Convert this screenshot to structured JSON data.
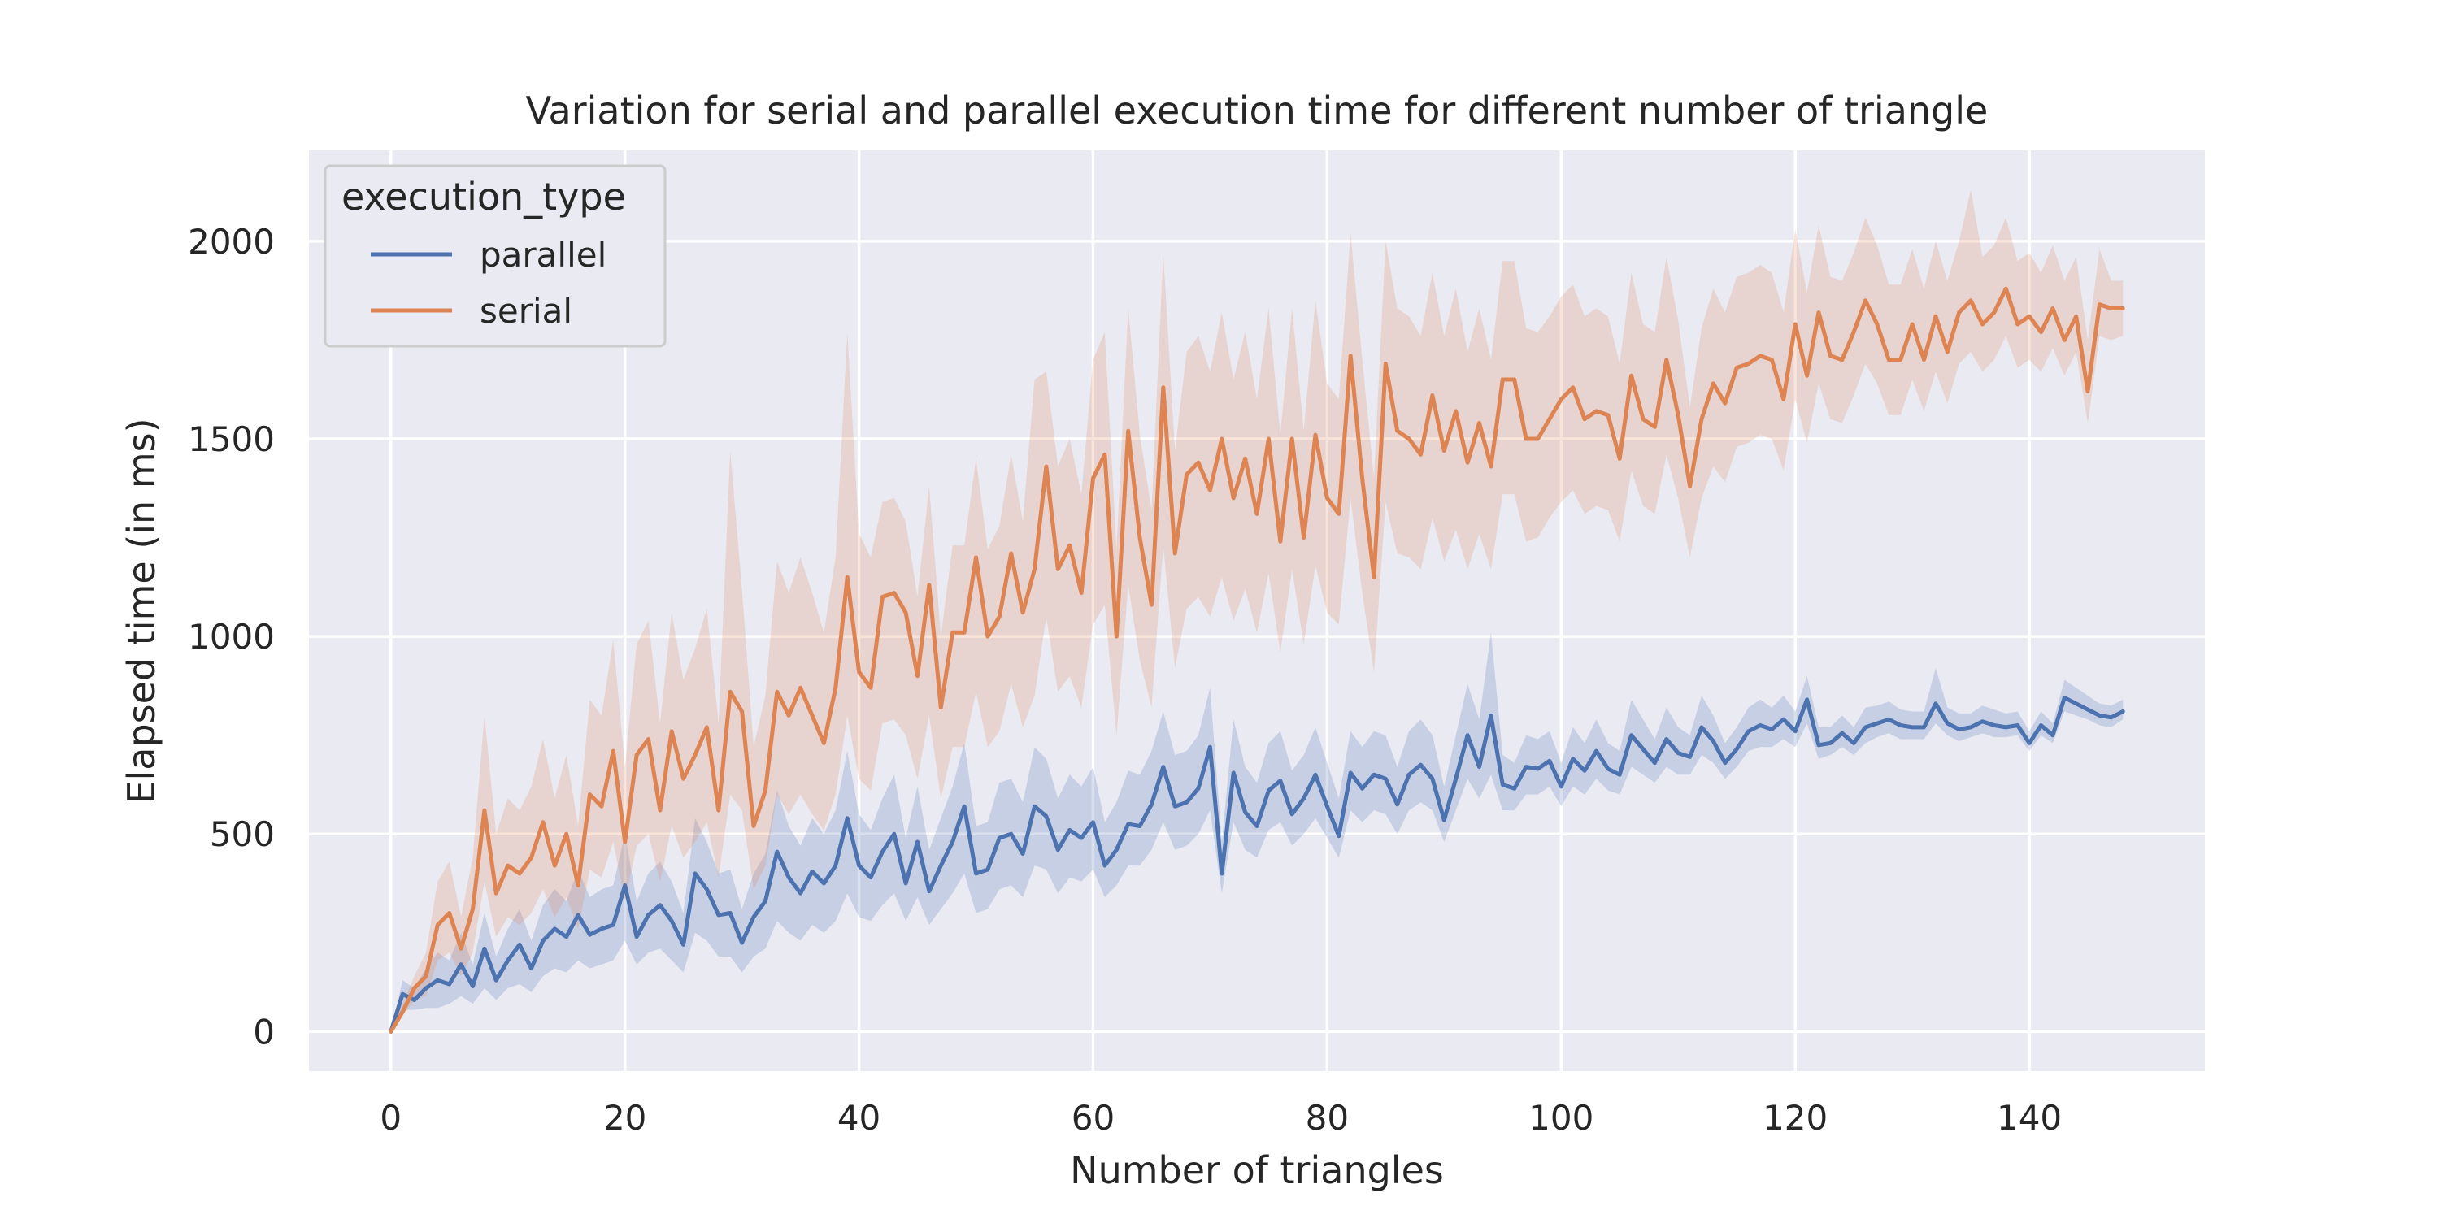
{
  "chart_data": {
    "type": "line",
    "title": "Variation for serial and parallel execution time for different number of triangle",
    "xlabel": "Number of triangles",
    "ylabel": "Elapsed time (in ms)",
    "xlim": [
      -7,
      155
    ],
    "ylim": [
      -100,
      2230
    ],
    "x_ticks": [
      0,
      20,
      40,
      60,
      80,
      100,
      120,
      140
    ],
    "y_ticks": [
      0,
      500,
      1000,
      1500,
      2000
    ],
    "grid": true,
    "legend": {
      "title": "execution_type",
      "placement": "top-left"
    },
    "series": [
      {
        "name": "parallel",
        "color": "#4c72b0",
        "x": [
          0,
          1,
          2,
          3,
          4,
          5,
          6,
          7,
          8,
          9,
          10,
          11,
          12,
          13,
          14,
          15,
          16,
          17,
          18,
          19,
          20,
          21,
          22,
          23,
          24,
          25,
          26,
          27,
          28,
          29,
          30,
          31,
          32,
          33,
          34,
          35,
          36,
          37,
          38,
          39,
          40,
          41,
          42,
          43,
          44,
          45,
          46,
          47,
          48,
          49,
          50,
          51,
          52,
          53,
          54,
          55,
          56,
          57,
          58,
          59,
          60,
          61,
          62,
          63,
          64,
          65,
          66,
          67,
          68,
          69,
          70,
          71,
          72,
          73,
          74,
          75,
          76,
          77,
          78,
          79,
          80,
          81,
          82,
          83,
          84,
          85,
          86,
          87,
          88,
          89,
          90,
          91,
          92,
          93,
          94,
          95,
          96,
          97,
          98,
          99,
          100,
          101,
          102,
          103,
          104,
          105,
          106,
          107,
          108,
          109,
          110,
          111,
          112,
          113,
          114,
          115,
          116,
          117,
          118,
          119,
          120,
          121,
          122,
          123,
          124,
          125,
          126,
          127,
          128,
          129,
          130,
          131,
          132,
          133,
          134,
          135,
          136,
          137,
          138,
          139,
          140,
          141,
          142,
          143,
          144,
          145,
          146,
          147,
          148
        ],
        "values": [
          0,
          95,
          80,
          110,
          130,
          120,
          170,
          115,
          210,
          130,
          180,
          220,
          160,
          230,
          260,
          240,
          295,
          245,
          260,
          270,
          370,
          240,
          295,
          320,
          280,
          220,
          400,
          360,
          295,
          300,
          225,
          290,
          330,
          455,
          390,
          350,
          405,
          375,
          420,
          540,
          420,
          390,
          455,
          500,
          375,
          480,
          355,
          420,
          480,
          570,
          400,
          410,
          490,
          500,
          450,
          570,
          545,
          460,
          510,
          490,
          530,
          420,
          460,
          525,
          520,
          575,
          670,
          570,
          580,
          615,
          720,
          400,
          655,
          555,
          520,
          610,
          635,
          550,
          590,
          650,
          570,
          495,
          655,
          615,
          650,
          640,
          575,
          650,
          675,
          640,
          535,
          640,
          750,
          670,
          800,
          625,
          615,
          670,
          665,
          685,
          620,
          690,
          660,
          710,
          665,
          650,
          750,
          715,
          680,
          740,
          705,
          695,
          770,
          735,
          680,
          715,
          760,
          775,
          765,
          790,
          760,
          840,
          725,
          730,
          755,
          730,
          770,
          780,
          790,
          775,
          770,
          770,
          830,
          780,
          765,
          770,
          785,
          775,
          770,
          775,
          730,
          775,
          750,
          845,
          830,
          815,
          800,
          795,
          810
        ],
        "ci_lower": [
          0,
          55,
          55,
          60,
          60,
          70,
          90,
          70,
          110,
          80,
          110,
          120,
          100,
          140,
          160,
          150,
          180,
          160,
          170,
          180,
          230,
          170,
          200,
          210,
          180,
          150,
          250,
          230,
          190,
          190,
          150,
          190,
          210,
          280,
          250,
          230,
          270,
          250,
          280,
          350,
          290,
          280,
          320,
          350,
          280,
          340,
          270,
          310,
          350,
          400,
          300,
          310,
          360,
          370,
          340,
          420,
          410,
          350,
          390,
          380,
          410,
          340,
          370,
          420,
          420,
          460,
          530,
          460,
          470,
          500,
          560,
          350,
          530,
          460,
          440,
          510,
          530,
          470,
          500,
          540,
          490,
          440,
          560,
          530,
          560,
          550,
          500,
          560,
          580,
          560,
          480,
          560,
          640,
          590,
          650,
          560,
          560,
          600,
          600,
          620,
          570,
          620,
          600,
          640,
          610,
          600,
          670,
          650,
          630,
          670,
          650,
          650,
          700,
          680,
          640,
          670,
          710,
          720,
          720,
          740,
          720,
          780,
          690,
          700,
          720,
          700,
          730,
          745,
          755,
          740,
          740,
          740,
          780,
          750,
          735,
          745,
          755,
          745,
          745,
          750,
          710,
          750,
          730,
          810,
          800,
          790,
          775,
          770,
          790
        ],
        "ci_upper": [
          0,
          130,
          110,
          160,
          200,
          180,
          250,
          170,
          300,
          190,
          260,
          310,
          230,
          320,
          360,
          330,
          410,
          340,
          360,
          370,
          500,
          330,
          400,
          430,
          380,
          300,
          540,
          480,
          400,
          410,
          310,
          400,
          450,
          610,
          520,
          470,
          540,
          500,
          560,
          710,
          550,
          510,
          590,
          650,
          490,
          620,
          460,
          540,
          620,
          730,
          520,
          530,
          630,
          640,
          580,
          720,
          690,
          590,
          650,
          620,
          670,
          530,
          580,
          660,
          650,
          710,
          810,
          700,
          710,
          750,
          870,
          480,
          790,
          670,
          630,
          730,
          760,
          660,
          700,
          770,
          680,
          590,
          760,
          720,
          760,
          750,
          670,
          760,
          790,
          750,
          620,
          750,
          880,
          790,
          1010,
          700,
          680,
          750,
          740,
          760,
          680,
          770,
          730,
          790,
          730,
          710,
          840,
          790,
          740,
          820,
          770,
          750,
          850,
          800,
          730,
          770,
          820,
          840,
          820,
          850,
          810,
          900,
          770,
          770,
          800,
          770,
          820,
          825,
          835,
          815,
          810,
          810,
          920,
          820,
          805,
          805,
          825,
          815,
          805,
          810,
          760,
          810,
          780,
          890,
          870,
          850,
          830,
          825,
          840
        ]
      },
      {
        "name": "serial",
        "color": "#dd8452",
        "x": [
          0,
          1,
          2,
          3,
          4,
          5,
          6,
          7,
          8,
          9,
          10,
          11,
          12,
          13,
          14,
          15,
          16,
          17,
          18,
          19,
          20,
          21,
          22,
          23,
          24,
          25,
          26,
          27,
          28,
          29,
          30,
          31,
          32,
          33,
          34,
          35,
          36,
          37,
          38,
          39,
          40,
          41,
          42,
          43,
          44,
          45,
          46,
          47,
          48,
          49,
          50,
          51,
          52,
          53,
          54,
          55,
          56,
          57,
          58,
          59,
          60,
          61,
          62,
          63,
          64,
          65,
          66,
          67,
          68,
          69,
          70,
          71,
          72,
          73,
          74,
          75,
          76,
          77,
          78,
          79,
          80,
          81,
          82,
          83,
          84,
          85,
          86,
          87,
          88,
          89,
          90,
          91,
          92,
          93,
          94,
          95,
          96,
          97,
          98,
          99,
          100,
          101,
          102,
          103,
          104,
          105,
          106,
          107,
          108,
          109,
          110,
          111,
          112,
          113,
          114,
          115,
          116,
          117,
          118,
          119,
          120,
          121,
          122,
          123,
          124,
          125,
          126,
          127,
          128,
          129,
          130,
          131,
          132,
          133,
          134,
          135,
          136,
          137,
          138,
          139,
          140,
          141,
          142,
          143,
          144,
          145,
          146,
          147,
          148
        ],
        "values": [
          0,
          50,
          110,
          140,
          270,
          300,
          210,
          310,
          560,
          350,
          420,
          400,
          440,
          530,
          420,
          500,
          370,
          600,
          570,
          710,
          480,
          700,
          740,
          560,
          760,
          640,
          700,
          770,
          560,
          860,
          810,
          520,
          610,
          860,
          800,
          870,
          800,
          730,
          870,
          1150,
          910,
          870,
          1100,
          1110,
          1060,
          900,
          1130,
          820,
          1010,
          1010,
          1200,
          1000,
          1050,
          1210,
          1060,
          1170,
          1430,
          1170,
          1230,
          1110,
          1400,
          1460,
          1000,
          1520,
          1250,
          1080,
          1630,
          1210,
          1410,
          1440,
          1370,
          1500,
          1350,
          1450,
          1310,
          1500,
          1240,
          1500,
          1250,
          1510,
          1350,
          1310,
          1710,
          1400,
          1150,
          1690,
          1520,
          1500,
          1460,
          1610,
          1470,
          1570,
          1440,
          1540,
          1430,
          1650,
          1650,
          1500,
          1500,
          1550,
          1600,
          1630,
          1550,
          1570,
          1560,
          1450,
          1660,
          1550,
          1530,
          1700,
          1560,
          1380,
          1550,
          1640,
          1590,
          1680,
          1690,
          1710,
          1700,
          1600,
          1790,
          1660,
          1820,
          1710,
          1700,
          1770,
          1850,
          1790,
          1700,
          1700,
          1790,
          1700,
          1810,
          1720,
          1820,
          1850,
          1790,
          1820,
          1880,
          1790,
          1810,
          1770,
          1830,
          1750,
          1810,
          1620,
          1840,
          1830,
          1830
        ],
        "ci_lower": [
          0,
          40,
          80,
          90,
          180,
          200,
          140,
          200,
          380,
          240,
          290,
          270,
          300,
          360,
          290,
          340,
          260,
          410,
          390,
          480,
          330,
          470,
          500,
          380,
          520,
          440,
          480,
          530,
          390,
          600,
          560,
          360,
          420,
          600,
          550,
          600,
          550,
          510,
          600,
          800,
          640,
          610,
          780,
          790,
          750,
          640,
          800,
          590,
          720,
          720,
          860,
          720,
          760,
          880,
          770,
          850,
          1050,
          860,
          900,
          820,
          1030,
          1080,
          750,
          1130,
          940,
          820,
          1230,
          920,
          1070,
          1100,
          1050,
          1150,
          1040,
          1120,
          1010,
          1160,
          960,
          1170,
          980,
          1180,
          1060,
          1030,
          1350,
          1110,
          910,
          1340,
          1210,
          1200,
          1170,
          1300,
          1190,
          1270,
          1170,
          1260,
          1170,
          1360,
          1360,
          1240,
          1250,
          1300,
          1340,
          1370,
          1310,
          1330,
          1320,
          1240,
          1420,
          1330,
          1310,
          1460,
          1350,
          1200,
          1350,
          1430,
          1390,
          1480,
          1490,
          1510,
          1500,
          1420,
          1600,
          1490,
          1640,
          1550,
          1540,
          1610,
          1690,
          1640,
          1560,
          1560,
          1650,
          1570,
          1670,
          1590,
          1690,
          1720,
          1670,
          1700,
          1760,
          1680,
          1700,
          1670,
          1730,
          1660,
          1720,
          1540,
          1760,
          1750,
          1760
        ],
        "ci_upper": [
          0,
          70,
          140,
          200,
          380,
          430,
          290,
          440,
          800,
          500,
          590,
          560,
          620,
          740,
          590,
          700,
          520,
          840,
          800,
          990,
          670,
          980,
          1040,
          780,
          1060,
          890,
          970,
          1070,
          780,
          1470,
          1120,
          720,
          850,
          1190,
          1110,
          1200,
          1110,
          1010,
          1200,
          1770,
          1260,
          1200,
          1340,
          1350,
          1290,
          1100,
          1380,
          1000,
          1230,
          1230,
          1450,
          1220,
          1280,
          1460,
          1290,
          1650,
          1670,
          1430,
          1500,
          1360,
          1700,
          1770,
          1220,
          1830,
          1510,
          1320,
          1970,
          1470,
          1720,
          1760,
          1670,
          1820,
          1650,
          1770,
          1600,
          1830,
          1510,
          1830,
          1520,
          1850,
          1640,
          1600,
          2020,
          1700,
          1400,
          2000,
          1830,
          1810,
          1760,
          1920,
          1760,
          1880,
          1720,
          1830,
          1700,
          1950,
          1950,
          1780,
          1770,
          1810,
          1860,
          1890,
          1810,
          1830,
          1810,
          1690,
          1920,
          1790,
          1770,
          1960,
          1800,
          1580,
          1780,
          1880,
          1820,
          1910,
          1920,
          1940,
          1920,
          1820,
          2030,
          1870,
          2040,
          1910,
          1900,
          1970,
          2060,
          1990,
          1890,
          1890,
          1980,
          1880,
          2000,
          1900,
          2000,
          2130,
          1960,
          1990,
          2060,
          1950,
          1970,
          1920,
          1990,
          1900,
          1960,
          1750,
          1980,
          1900,
          1900
        ]
      }
    ]
  }
}
